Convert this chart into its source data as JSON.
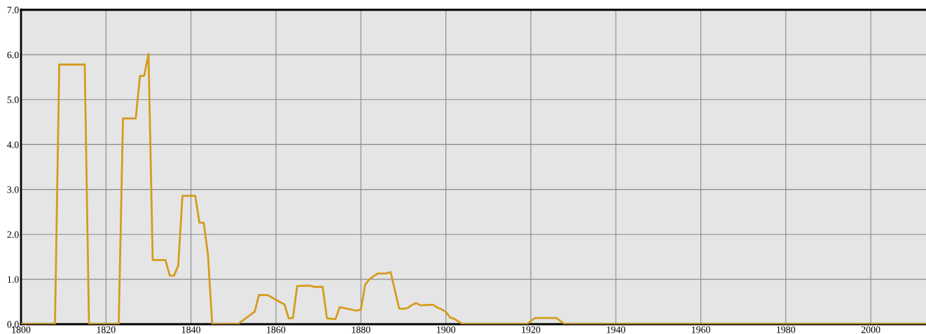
{
  "chart_data": {
    "type": "line",
    "x": [
      1800,
      1808,
      1809,
      1815,
      1816,
      1823,
      1824,
      1827,
      1828,
      1829,
      1830,
      1831,
      1834,
      1835,
      1836,
      1837,
      1838,
      1841,
      1842,
      1843,
      1844,
      1845,
      1851,
      1855,
      1856,
      1858,
      1861,
      1862,
      1863,
      1864,
      1865,
      1868,
      1869,
      1871,
      1872,
      1874,
      1875,
      1879,
      1880,
      1881,
      1882,
      1883,
      1884,
      1886,
      1887,
      1889,
      1890,
      1891,
      1892,
      1893,
      1894,
      1896,
      1897,
      1898,
      1899,
      1900,
      1901,
      1902,
      1904,
      1919,
      1921,
      1926,
      1928,
      2013
    ],
    "series": [
      {
        "color": "#d49c1c",
        "values": [
          0,
          0,
          5.78,
          5.78,
          0,
          0,
          4.58,
          4.58,
          5.53,
          5.53,
          6.02,
          1.43,
          1.43,
          1.08,
          1.08,
          1.3,
          2.86,
          2.86,
          2.26,
          2.26,
          1.55,
          0,
          0,
          0.28,
          0.65,
          0.65,
          0.49,
          0.44,
          0.13,
          0.14,
          0.85,
          0.86,
          0.83,
          0.83,
          0.13,
          0.11,
          0.38,
          0.3,
          0.33,
          0.88,
          1.0,
          1.07,
          1.13,
          1.13,
          1.16,
          0.35,
          0.34,
          0.36,
          0.43,
          0.47,
          0.42,
          0.43,
          0.43,
          0.37,
          0.33,
          0.27,
          0.15,
          0.12,
          0,
          0,
          0.14,
          0.14,
          0,
          0
        ]
      }
    ],
    "xlim": [
      1800,
      2013
    ],
    "ylim": [
      0,
      7
    ],
    "xticks": [
      1800,
      1820,
      1840,
      1860,
      1880,
      1900,
      1920,
      1940,
      1960,
      1980,
      2000
    ],
    "yticks": [
      {
        "value": 0,
        "label": "0.0"
      },
      {
        "value": 1,
        "label": "1.0"
      },
      {
        "value": 2,
        "label": "2.0"
      },
      {
        "value": 3,
        "label": "3.0"
      },
      {
        "value": 4,
        "label": "4.0"
      },
      {
        "value": 5,
        "label": "5.0"
      },
      {
        "value": 6,
        "label": "6.0"
      },
      {
        "value": 7,
        "label": "7.0"
      }
    ],
    "grid": true
  }
}
